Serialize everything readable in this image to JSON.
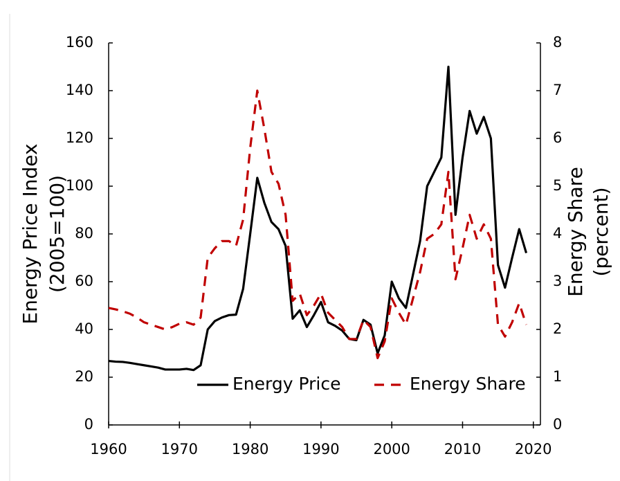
{
  "chart_data": {
    "type": "line",
    "ylabel": [
      "Energy Price Index",
      "(2005=100)"
    ],
    "y2label": [
      "Energy Share",
      "(percent)"
    ],
    "x": [
      1960,
      1961,
      1962,
      1963,
      1964,
      1965,
      1966,
      1967,
      1968,
      1969,
      1970,
      1971,
      1972,
      1973,
      1974,
      1975,
      1976,
      1977,
      1978,
      1979,
      1980,
      1981,
      1982,
      1983,
      1984,
      1985,
      1986,
      1987,
      1988,
      1989,
      1990,
      1991,
      1992,
      1993,
      1994,
      1995,
      1996,
      1997,
      1998,
      1999,
      2000,
      2001,
      2002,
      2003,
      2004,
      2005,
      2006,
      2007,
      2008,
      2009,
      2010,
      2011,
      2012,
      2013,
      2014,
      2015,
      2016,
      2017,
      2018,
      2019
    ],
    "series": [
      {
        "name": "Energy Price",
        "color": "#000000",
        "dashed": false,
        "values": [
          26.8,
          26.5,
          26.4,
          26.0,
          25.5,
          25.0,
          24.5,
          24.0,
          23.2,
          23.2,
          23.2,
          23.5,
          23.0,
          25.0,
          40.0,
          43.5,
          45.0,
          46.0,
          46.2,
          57.0,
          80.0,
          103.5,
          93.0,
          85.0,
          82.0,
          75.0,
          44.5,
          48.0,
          41.0,
          46.0,
          51.5,
          43.0,
          41.5,
          39.5,
          36.0,
          35.5,
          44.0,
          42.0,
          30.0,
          37.5,
          60.0,
          53.0,
          49.0,
          63.0,
          77.0,
          100.0,
          106.0,
          112.0,
          150.0,
          88.0,
          112.0,
          131.5,
          122.0,
          129.0,
          120.0,
          67.0,
          57.5,
          70.0,
          82.0,
          72.0
        ]
      },
      {
        "name": "Energy Share",
        "color": "#c00000",
        "dashed": true,
        "axis": "y2",
        "values": [
          2.45,
          2.42,
          2.38,
          2.33,
          2.25,
          2.15,
          2.1,
          2.05,
          2.0,
          2.05,
          2.12,
          2.15,
          2.1,
          2.25,
          3.5,
          3.7,
          3.85,
          3.85,
          3.75,
          4.3,
          5.8,
          7.0,
          6.2,
          5.3,
          5.05,
          4.4,
          2.6,
          2.75,
          2.3,
          2.5,
          2.75,
          2.35,
          2.2,
          2.05,
          1.8,
          1.8,
          2.2,
          2.05,
          1.4,
          1.75,
          2.65,
          2.35,
          2.1,
          2.65,
          3.2,
          3.9,
          4.0,
          4.2,
          5.3,
          3.05,
          3.7,
          4.4,
          3.9,
          4.2,
          3.9,
          2.1,
          1.85,
          2.15,
          2.55,
          2.1
        ]
      }
    ],
    "xlim": [
      1960,
      2021
    ],
    "xticks": [
      1960,
      1970,
      1980,
      1990,
      2000,
      2010,
      2020
    ],
    "ylim": [
      0,
      160
    ],
    "yticks": [
      0,
      20,
      40,
      60,
      80,
      100,
      120,
      140,
      160
    ],
    "y2lim": [
      0,
      8
    ],
    "y2ticks": [
      0,
      1,
      2,
      3,
      4,
      5,
      6,
      7,
      8
    ],
    "legend": "bottom-right"
  }
}
